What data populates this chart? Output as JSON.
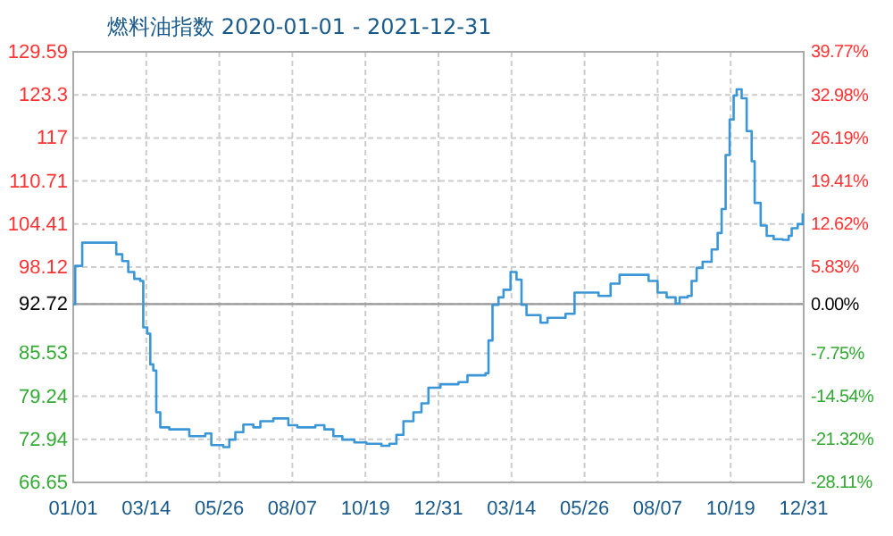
{
  "chart_data": {
    "type": "step",
    "title": "燃料油指数 2020-01-01 - 2021-12-31",
    "x": [
      "2020-01-01",
      "2020-01-03",
      "2020-01-10",
      "2020-02-09",
      "2020-02-13",
      "2020-02-19",
      "2020-02-25",
      "2020-03-02",
      "2020-03-08",
      "2020-03-11",
      "2020-03-15",
      "2020-03-18",
      "2020-03-21",
      "2020-03-24",
      "2020-03-28",
      "2020-04-06",
      "2020-04-18",
      "2020-04-26",
      "2020-05-12",
      "2020-05-18",
      "2020-05-30",
      "2020-06-05",
      "2020-06-11",
      "2020-06-19",
      "2020-06-29",
      "2020-07-06",
      "2020-07-19",
      "2020-08-03",
      "2020-08-12",
      "2020-08-30",
      "2020-09-08",
      "2020-09-17",
      "2020-09-26",
      "2020-10-08",
      "2020-10-20",
      "2020-11-04",
      "2020-11-12",
      "2020-11-19",
      "2020-11-26",
      "2020-12-06",
      "2020-12-14",
      "2020-12-21",
      "2021-01-02",
      "2021-01-20",
      "2021-01-29",
      "2021-02-16",
      "2021-02-19",
      "2021-02-23",
      "2021-03-01",
      "2021-03-06",
      "2021-03-13",
      "2021-03-19",
      "2021-03-24",
      "2021-03-29",
      "2021-04-12",
      "2021-04-19",
      "2021-05-07",
      "2021-05-16",
      "2021-05-31",
      "2021-06-09",
      "2021-06-21",
      "2021-06-30",
      "2021-07-20",
      "2021-07-29",
      "2021-08-07",
      "2021-08-16",
      "2021-08-25",
      "2021-08-29",
      "2021-09-06",
      "2021-09-10",
      "2021-09-15",
      "2021-09-21",
      "2021-09-30",
      "2021-10-06",
      "2021-10-10",
      "2021-10-14",
      "2021-10-18",
      "2021-10-22",
      "2021-10-25",
      "2021-10-30",
      "2021-11-04",
      "2021-11-09",
      "2021-11-12",
      "2021-11-18",
      "2021-11-24",
      "2021-12-01",
      "2021-12-10",
      "2021-12-16",
      "2021-12-19",
      "2021-12-25",
      "2021-12-30"
    ],
    "series": [
      {
        "color": "#3a96d6",
        "values": [
          92.7,
          98.3,
          101.7,
          101.7,
          100.0,
          99.0,
          97.4,
          96.4,
          96.1,
          89.3,
          88.4,
          83.9,
          83.0,
          76.9,
          74.7,
          74.4,
          74.4,
          73.4,
          73.8,
          72.1,
          71.8,
          72.9,
          74.0,
          75.1,
          74.7,
          75.6,
          76.0,
          75.0,
          74.7,
          75.0,
          74.4,
          73.4,
          72.9,
          72.5,
          72.3,
          72.0,
          72.3,
          73.6,
          75.6,
          76.9,
          78.2,
          80.5,
          81.0,
          81.3,
          82.3,
          82.6,
          87.4,
          92.6,
          93.7,
          94.8,
          97.4,
          96.3,
          92.6,
          91.1,
          90.0,
          90.7,
          91.3,
          94.4,
          94.4,
          93.9,
          95.7,
          97.0,
          97.0,
          96.1,
          94.4,
          93.7,
          92.8,
          93.7,
          93.9,
          96.1,
          98.0,
          98.9,
          100.7,
          103.1,
          106.6,
          114.5,
          119.7,
          123.2,
          124.1,
          122.8,
          118.0,
          113.6,
          107.5,
          104.2,
          102.7,
          102.2,
          102.1,
          102.7,
          103.8,
          104.4,
          106.0
        ]
      }
    ],
    "xlim": [
      "2020-01-01",
      "2021-12-31"
    ],
    "xticks": [
      {
        "value": "2020-01-01",
        "label": "01/01"
      },
      {
        "value": "2020-03-14",
        "label": "03/14"
      },
      {
        "value": "2020-05-26",
        "label": "05/26"
      },
      {
        "value": "2020-08-07",
        "label": "08/07"
      },
      {
        "value": "2020-10-19",
        "label": "10/19"
      },
      {
        "value": "2020-12-31",
        "label": "12/31"
      },
      {
        "value": "2021-03-14",
        "label": "03/14"
      },
      {
        "value": "2021-05-26",
        "label": "05/26"
      },
      {
        "value": "2021-08-07",
        "label": "08/07"
      },
      {
        "value": "2021-10-19",
        "label": "10/19"
      },
      {
        "value": "2021-12-31",
        "label": "12/31"
      }
    ],
    "ylim": [
      66.65,
      129.59
    ],
    "yticks": [
      66.65,
      72.94,
      79.24,
      85.53,
      92.72,
      98.12,
      104.41,
      110.71,
      117,
      123.3,
      129.59
    ],
    "y2lim": [
      -28.11,
      39.77
    ],
    "y2ticks": [
      {
        "value": -28.11,
        "label": "-28.11%"
      },
      {
        "value": -21.32,
        "label": "-21.32%"
      },
      {
        "value": -14.54,
        "label": "-14.54%"
      },
      {
        "value": -7.75,
        "label": "-7.75%"
      },
      {
        "value": 0,
        "label": "0.00%"
      },
      {
        "value": 5.83,
        "label": "5.83%"
      },
      {
        "value": 12.62,
        "label": "12.62%"
      },
      {
        "value": 19.41,
        "label": "19.41%"
      },
      {
        "value": 26.19,
        "label": "26.19%"
      },
      {
        "value": 32.98,
        "label": "32.98%"
      },
      {
        "value": 39.77,
        "label": "39.77%"
      }
    ],
    "ref_lines": [
      {
        "axis": "y",
        "value": 92.72,
        "color": "#999999"
      }
    ],
    "grid": true,
    "marker": "none",
    "line_style": "solid"
  }
}
